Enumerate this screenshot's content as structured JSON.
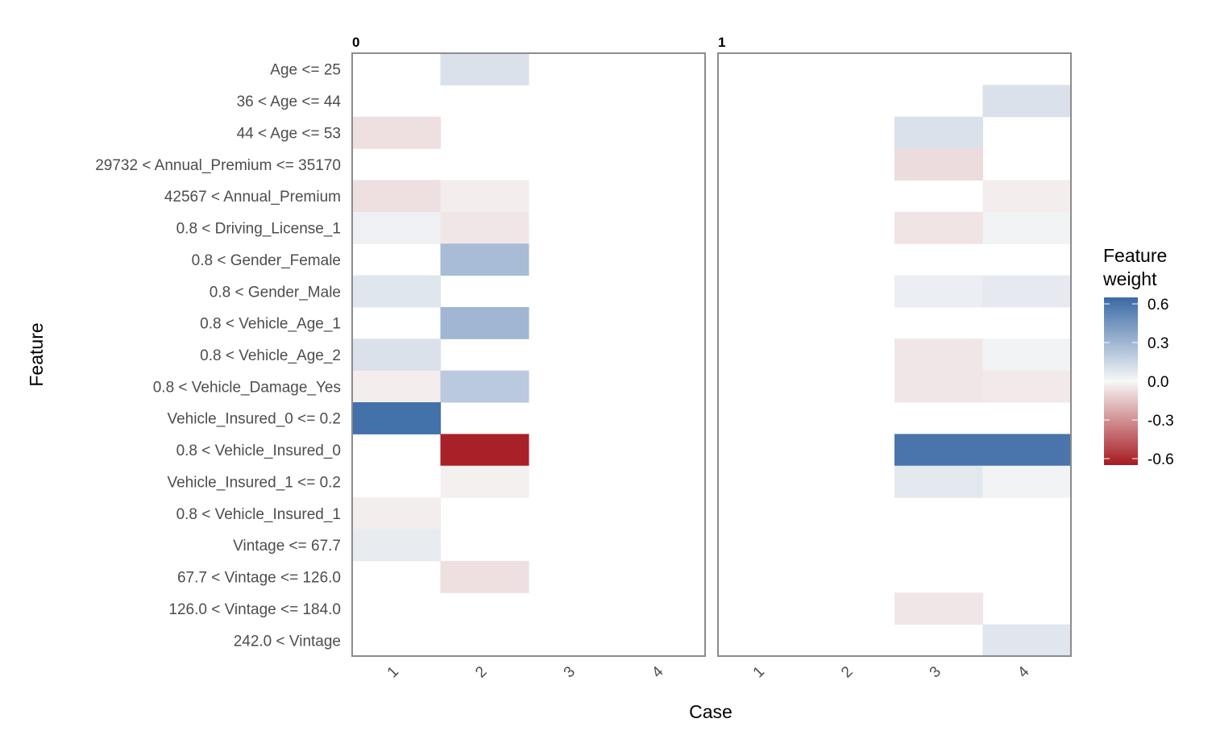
{
  "chart_data": {
    "type": "heatmap",
    "xlabel": "Case",
    "ylabel": "Feature",
    "legend": {
      "title_lines": [
        "Feature",
        "weight"
      ],
      "ticks": [
        0.6,
        0.3,
        0.0,
        -0.3,
        -0.6
      ],
      "tick_labels": [
        "0.6",
        "0.3",
        "0.0",
        "-0.3",
        "-0.6"
      ],
      "range": [
        -0.65,
        0.65
      ],
      "colors": {
        "low": "#a51a21",
        "mid": "#f7f7f7",
        "high": "#3a6aa6"
      },
      "placement": "right"
    },
    "features": [
      "Age <= 25",
      "36 < Age <= 44",
      "44 < Age <= 53",
      "29732 < Annual_Premium <= 35170",
      "42567 < Annual_Premium",
      "0.8 < Driving_License_1",
      "0.8 < Gender_Female",
      "0.8 < Gender_Male",
      "0.8 < Vehicle_Age_1",
      "0.8 < Vehicle_Age_2",
      "0.8 < Vehicle_Damage_Yes",
      "Vehicle_Insured_0 <= 0.2",
      "0.8 < Vehicle_Insured_0",
      "Vehicle_Insured_1 <= 0.2",
      "0.8 < Vehicle_Insured_1",
      "Vintage <= 67.7",
      "67.7 < Vintage <= 126.0",
      "126.0 < Vintage <= 184.0",
      "242.0 < Vintage"
    ],
    "cases": [
      "1",
      "2",
      "3",
      "4"
    ],
    "panels": [
      {
        "label": "0",
        "cells": [
          {
            "case": "2",
            "feature": "Age <= 25",
            "value": 0.1
          },
          {
            "case": "1",
            "feature": "44 < Age <= 53",
            "value": -0.07
          },
          {
            "case": "1",
            "feature": "42567 < Annual_Premium",
            "value": -0.07
          },
          {
            "case": "2",
            "feature": "42567 < Annual_Premium",
            "value": -0.03
          },
          {
            "case": "1",
            "feature": "0.8 < Driving_License_1",
            "value": 0.03
          },
          {
            "case": "2",
            "feature": "0.8 < Driving_License_1",
            "value": -0.05
          },
          {
            "case": "2",
            "feature": "0.8 < Gender_Female",
            "value": 0.27
          },
          {
            "case": "1",
            "feature": "0.8 < Gender_Male",
            "value": 0.08
          },
          {
            "case": "2",
            "feature": "0.8 < Vehicle_Age_1",
            "value": 0.3
          },
          {
            "case": "1",
            "feature": "0.8 < Vehicle_Age_2",
            "value": 0.1
          },
          {
            "case": "1",
            "feature": "0.8 < Vehicle_Damage_Yes",
            "value": -0.03
          },
          {
            "case": "2",
            "feature": "0.8 < Vehicle_Damage_Yes",
            "value": 0.21
          },
          {
            "case": "1",
            "feature": "Vehicle_Insured_0 <= 0.2",
            "value": 0.62
          },
          {
            "case": "2",
            "feature": "0.8 < Vehicle_Insured_0",
            "value": -0.63
          },
          {
            "case": "2",
            "feature": "Vehicle_Insured_1 <= 0.2",
            "value": -0.02
          },
          {
            "case": "1",
            "feature": "0.8 < Vehicle_Insured_1",
            "value": -0.03
          },
          {
            "case": "1",
            "feature": "Vintage <= 67.7",
            "value": 0.05
          },
          {
            "case": "2",
            "feature": "67.7 < Vintage <= 126.0",
            "value": -0.07
          }
        ]
      },
      {
        "label": "1",
        "cells": [
          {
            "case": "4",
            "feature": "36 < Age <= 44",
            "value": 0.1
          },
          {
            "case": "3",
            "feature": "44 < Age <= 53",
            "value": 0.1
          },
          {
            "case": "3",
            "feature": "29732 < Annual_Premium <= 35170",
            "value": -0.08
          },
          {
            "case": "4",
            "feature": "42567 < Annual_Premium",
            "value": -0.03
          },
          {
            "case": "3",
            "feature": "0.8 < Driving_License_1",
            "value": -0.06
          },
          {
            "case": "4",
            "feature": "0.8 < Driving_License_1",
            "value": 0.02
          },
          {
            "case": "3",
            "feature": "0.8 < Gender_Male",
            "value": 0.04
          },
          {
            "case": "4",
            "feature": "0.8 < Gender_Male",
            "value": 0.06
          },
          {
            "case": "3",
            "feature": "0.8 < Vehicle_Age_2",
            "value": -0.05
          },
          {
            "case": "4",
            "feature": "0.8 < Vehicle_Age_2",
            "value": 0.02
          },
          {
            "case": "3",
            "feature": "0.8 < Vehicle_Damage_Yes",
            "value": -0.05
          },
          {
            "case": "4",
            "feature": "0.8 < Vehicle_Damage_Yes",
            "value": -0.04
          },
          {
            "case": "3",
            "feature": "0.8 < Vehicle_Insured_0",
            "value": 0.6
          },
          {
            "case": "4",
            "feature": "0.8 < Vehicle_Insured_0",
            "value": 0.6
          },
          {
            "case": "3",
            "feature": "Vehicle_Insured_1 <= 0.2",
            "value": 0.07
          },
          {
            "case": "4",
            "feature": "Vehicle_Insured_1 <= 0.2",
            "value": 0.02
          },
          {
            "case": "3",
            "feature": "126.0 < Vintage <= 184.0",
            "value": -0.05
          },
          {
            "case": "4",
            "feature": "242.0 < Vintage",
            "value": 0.08
          }
        ]
      }
    ]
  }
}
